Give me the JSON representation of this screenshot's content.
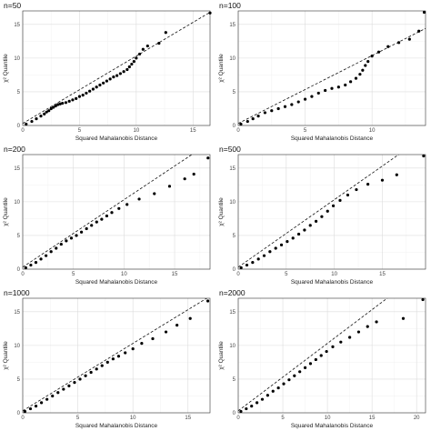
{
  "chart_data": [
    {
      "type": "scatter",
      "title": "n=50",
      "xlabel": "Squared Mahalanobis Distance",
      "ylabel": "χ² Quantile",
      "xlim": [
        0,
        16.5
      ],
      "ylim": [
        0,
        17
      ],
      "xticks": [
        0,
        5,
        10,
        15
      ],
      "yticks": [
        0,
        5,
        10,
        15
      ],
      "grid": true,
      "ref_line": {
        "style": "dashed",
        "from": [
          0,
          0.3
        ],
        "to": [
          16.5,
          16.8
        ]
      },
      "points": [
        [
          0.3,
          0.2
        ],
        [
          0.8,
          0.6
        ],
        [
          1.2,
          1.0
        ],
        [
          1.6,
          1.4
        ],
        [
          1.9,
          1.7
        ],
        [
          2.1,
          2.0
        ],
        [
          2.3,
          2.2
        ],
        [
          2.5,
          2.5
        ],
        [
          2.7,
          2.7
        ],
        [
          2.9,
          2.9
        ],
        [
          3.1,
          3.1
        ],
        [
          3.3,
          3.2
        ],
        [
          3.5,
          3.3
        ],
        [
          3.8,
          3.4
        ],
        [
          4.1,
          3.6
        ],
        [
          4.4,
          3.8
        ],
        [
          4.7,
          4.0
        ],
        [
          5.0,
          4.3
        ],
        [
          5.3,
          4.5
        ],
        [
          5.6,
          4.8
        ],
        [
          5.9,
          5.1
        ],
        [
          6.2,
          5.4
        ],
        [
          6.5,
          5.7
        ],
        [
          6.8,
          6.0
        ],
        [
          7.1,
          6.3
        ],
        [
          7.4,
          6.6
        ],
        [
          7.7,
          6.9
        ],
        [
          8.0,
          7.2
        ],
        [
          8.3,
          7.4
        ],
        [
          8.6,
          7.7
        ],
        [
          8.9,
          8.0
        ],
        [
          9.2,
          8.3
        ],
        [
          9.4,
          8.7
        ],
        [
          9.6,
          9.1
        ],
        [
          9.8,
          9.5
        ],
        [
          10.0,
          10.0
        ],
        [
          10.3,
          10.6
        ],
        [
          10.6,
          11.3
        ],
        [
          11.0,
          11.8
        ],
        [
          12.0,
          12.2
        ],
        [
          12.6,
          13.8
        ],
        [
          16.5,
          16.7
        ]
      ]
    },
    {
      "type": "scatter",
      "title": "n=100",
      "xlabel": "Squared Mahalanobis Distance",
      "ylabel": "χ² Quantile",
      "xlim": [
        0,
        14
      ],
      "ylim": [
        0,
        17
      ],
      "xticks": [
        0,
        5,
        10
      ],
      "yticks": [
        0,
        5,
        10,
        15
      ],
      "grid": true,
      "ref_line": {
        "style": "dashed",
        "from": [
          0,
          0.3
        ],
        "to": [
          14,
          14.4
        ]
      },
      "points": [
        [
          0.2,
          0.2
        ],
        [
          0.7,
          0.6
        ],
        [
          1.1,
          1.0
        ],
        [
          1.5,
          1.4
        ],
        [
          2.0,
          1.9
        ],
        [
          2.5,
          2.2
        ],
        [
          3.0,
          2.5
        ],
        [
          3.5,
          2.8
        ],
        [
          4.0,
          3.1
        ],
        [
          4.5,
          3.5
        ],
        [
          5.0,
          3.9
        ],
        [
          5.5,
          4.3
        ],
        [
          6.0,
          4.8
        ],
        [
          6.5,
          5.2
        ],
        [
          7.0,
          5.5
        ],
        [
          7.5,
          5.7
        ],
        [
          8.0,
          6.0
        ],
        [
          8.4,
          6.5
        ],
        [
          8.8,
          7.0
        ],
        [
          9.1,
          7.6
        ],
        [
          9.3,
          8.2
        ],
        [
          9.5,
          8.9
        ],
        [
          9.7,
          9.5
        ],
        [
          10.0,
          10.3
        ],
        [
          10.5,
          10.9
        ],
        [
          11.2,
          11.7
        ],
        [
          12.0,
          12.3
        ],
        [
          12.8,
          12.8
        ],
        [
          13.5,
          14.0
        ],
        [
          13.9,
          16.8
        ]
      ]
    },
    {
      "type": "scatter",
      "title": "n=200",
      "xlabel": "Squared Mahalanobis Distance",
      "ylabel": "χ² Quantile",
      "xlim": [
        0,
        18.5
      ],
      "ylim": [
        0,
        17
      ],
      "xticks": [
        0,
        5,
        10,
        15
      ],
      "yticks": [
        0,
        5,
        10,
        15
      ],
      "grid": true,
      "ref_line": {
        "style": "dashed",
        "from": [
          0,
          0.3
        ],
        "to": [
          18.5,
          18.8
        ]
      },
      "points": [
        [
          0.3,
          0.2
        ],
        [
          0.8,
          0.6
        ],
        [
          1.3,
          1.0
        ],
        [
          1.8,
          1.5
        ],
        [
          2.3,
          2.0
        ],
        [
          2.8,
          2.6
        ],
        [
          3.3,
          3.1
        ],
        [
          3.8,
          3.7
        ],
        [
          4.3,
          4.2
        ],
        [
          4.8,
          4.6
        ],
        [
          5.3,
          5.0
        ],
        [
          5.8,
          5.5
        ],
        [
          6.3,
          6.0
        ],
        [
          6.8,
          6.5
        ],
        [
          7.3,
          7.0
        ],
        [
          7.8,
          7.4
        ],
        [
          8.3,
          7.9
        ],
        [
          8.8,
          8.4
        ],
        [
          9.5,
          9.0
        ],
        [
          10.3,
          9.6
        ],
        [
          11.5,
          10.4
        ],
        [
          13.0,
          11.2
        ],
        [
          14.5,
          12.3
        ],
        [
          16.0,
          13.4
        ],
        [
          16.9,
          14.1
        ],
        [
          18.3,
          16.5
        ]
      ]
    },
    {
      "type": "scatter",
      "title": "n=500",
      "xlabel": "Squared Mahalanobis Distance",
      "ylabel": "χ² Quantile",
      "xlim": [
        0,
        19.5
      ],
      "ylim": [
        0,
        17
      ],
      "xticks": [
        0,
        5,
        10,
        15
      ],
      "yticks": [
        0,
        5,
        10,
        15
      ],
      "grid": true,
      "ref_line": {
        "style": "dashed",
        "from": [
          0,
          0.3
        ],
        "to": [
          19.5,
          19.8
        ]
      },
      "points": [
        [
          0.3,
          0.2
        ],
        [
          0.9,
          0.6
        ],
        [
          1.5,
          1.0
        ],
        [
          2.1,
          1.5
        ],
        [
          2.7,
          2.0
        ],
        [
          3.3,
          2.6
        ],
        [
          3.9,
          3.1
        ],
        [
          4.5,
          3.6
        ],
        [
          5.1,
          4.1
        ],
        [
          5.7,
          4.6
        ],
        [
          6.3,
          5.2
        ],
        [
          6.9,
          5.8
        ],
        [
          7.5,
          6.5
        ],
        [
          8.1,
          7.1
        ],
        [
          8.7,
          7.8
        ],
        [
          9.3,
          8.6
        ],
        [
          9.9,
          9.4
        ],
        [
          10.6,
          10.2
        ],
        [
          11.4,
          11.0
        ],
        [
          12.3,
          11.8
        ],
        [
          13.5,
          12.6
        ],
        [
          15.0,
          13.2
        ],
        [
          16.5,
          14.0
        ],
        [
          19.3,
          16.8
        ]
      ]
    },
    {
      "type": "scatter",
      "title": "n=1000",
      "xlabel": "Squared Mahalanobis Distance",
      "ylabel": "χ² Quantile",
      "xlim": [
        0,
        17
      ],
      "ylim": [
        0,
        17
      ],
      "xticks": [
        0,
        5,
        10,
        15
      ],
      "yticks": [
        0,
        5,
        10,
        15
      ],
      "grid": true,
      "ref_line": {
        "style": "dashed",
        "from": [
          0,
          0.3
        ],
        "to": [
          17,
          17.3
        ]
      },
      "points": [
        [
          0.2,
          0.2
        ],
        [
          0.7,
          0.6
        ],
        [
          1.2,
          1.0
        ],
        [
          1.7,
          1.5
        ],
        [
          2.2,
          2.0
        ],
        [
          2.7,
          2.5
        ],
        [
          3.2,
          3.0
        ],
        [
          3.7,
          3.5
        ],
        [
          4.2,
          4.0
        ],
        [
          4.7,
          4.5
        ],
        [
          5.2,
          5.0
        ],
        [
          5.7,
          5.5
        ],
        [
          6.2,
          6.0
        ],
        [
          6.7,
          6.5
        ],
        [
          7.2,
          7.0
        ],
        [
          7.7,
          7.5
        ],
        [
          8.2,
          8.0
        ],
        [
          8.7,
          8.4
        ],
        [
          9.3,
          8.9
        ],
        [
          10.0,
          9.5
        ],
        [
          10.8,
          10.3
        ],
        [
          11.8,
          11.0
        ],
        [
          13.0,
          12.0
        ],
        [
          14.0,
          13.0
        ],
        [
          15.2,
          14.0
        ],
        [
          16.8,
          16.6
        ]
      ]
    },
    {
      "type": "scatter",
      "title": "n=2000",
      "xlabel": "Squared Mahalanobis Distance",
      "ylabel": "χ² Quantile",
      "xlim": [
        0,
        21
      ],
      "ylim": [
        0,
        17
      ],
      "xticks": [
        0,
        5,
        10,
        15,
        20
      ],
      "yticks": [
        0,
        5,
        10,
        15
      ],
      "grid": true,
      "ref_line": {
        "style": "dashed",
        "from": [
          0,
          0.3
        ],
        "to": [
          21,
          21.3
        ]
      },
      "points": [
        [
          0.3,
          0.2
        ],
        [
          0.9,
          0.6
        ],
        [
          1.5,
          1.0
        ],
        [
          2.1,
          1.5
        ],
        [
          2.7,
          2.0
        ],
        [
          3.3,
          2.6
        ],
        [
          3.9,
          3.2
        ],
        [
          4.5,
          3.7
        ],
        [
          5.1,
          4.3
        ],
        [
          5.7,
          4.9
        ],
        [
          6.3,
          5.5
        ],
        [
          6.9,
          6.1
        ],
        [
          7.5,
          6.7
        ],
        [
          8.1,
          7.3
        ],
        [
          8.7,
          7.9
        ],
        [
          9.3,
          8.5
        ],
        [
          9.9,
          9.1
        ],
        [
          10.6,
          9.8
        ],
        [
          11.5,
          10.5
        ],
        [
          12.5,
          11.2
        ],
        [
          13.5,
          12.0
        ],
        [
          14.5,
          12.8
        ],
        [
          15.5,
          13.5
        ],
        [
          18.5,
          14.0
        ],
        [
          20.7,
          16.8
        ]
      ]
    }
  ]
}
